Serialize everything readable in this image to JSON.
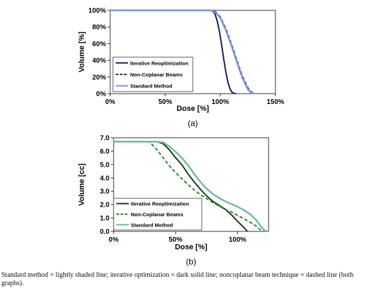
{
  "figure_caption": "Standard method = lightly shaded line; iterative optimization = dark solid line; noncoplanar beam technique = dashed line (both graphs).",
  "chart_data": [
    {
      "type": "line",
      "panel_label": "(a)",
      "xlabel": "Dose [%]",
      "ylabel": "Volume [%]",
      "xlim": [
        0,
        150
      ],
      "ylim": [
        0,
        100
      ],
      "x_ticks": [
        "0%",
        "50%",
        "100%",
        "150%"
      ],
      "y_ticks": [
        "0%",
        "20%",
        "40%",
        "60%",
        "80%",
        "100%"
      ],
      "grid": false,
      "legend_position": "bottom-left",
      "series": [
        {
          "name": "Iterative Reoptimization",
          "color": "#1a1a66",
          "style": "solid",
          "x": [
            0,
            90,
            93,
            95,
            97,
            99,
            101,
            103,
            105,
            107,
            109,
            111,
            114
          ],
          "y": [
            100,
            100,
            99,
            96,
            88,
            76,
            60,
            42,
            26,
            13,
            5,
            1,
            0
          ]
        },
        {
          "name": "Non-Coplanar Beams",
          "color": "#1f3a9e",
          "style": "dashed",
          "x": [
            0,
            90,
            95,
            100,
            105,
            110,
            115,
            120,
            125,
            128,
            131
          ],
          "y": [
            100,
            100,
            99,
            92,
            78,
            60,
            40,
            21,
            7,
            2,
            0
          ]
        },
        {
          "name": "Standard Method",
          "color": "#7a93d6",
          "style": "solid",
          "x": [
            0,
            90,
            95,
            100,
            105,
            110,
            115,
            120,
            125,
            128,
            130
          ],
          "y": [
            100,
            100,
            98,
            91,
            76,
            58,
            38,
            19,
            5,
            1,
            0
          ]
        }
      ]
    },
    {
      "type": "line",
      "panel_label": "(b)",
      "xlabel": "Dose [%]",
      "ylabel": "Volume [cc]",
      "xlim": [
        0,
        125
      ],
      "ylim": [
        0,
        7
      ],
      "x_ticks": [
        "0%",
        "50%",
        "100%"
      ],
      "x_tick_values": [
        0,
        50,
        100
      ],
      "y_ticks": [
        "0.0",
        "1.0",
        "2.0",
        "3.0",
        "4.0",
        "5.0",
        "6.0",
        "7.0"
      ],
      "grid": false,
      "legend_position": "bottom-left",
      "series": [
        {
          "name": "Iterative Reoptimization",
          "color": "#143d14",
          "style": "solid",
          "x": [
            0,
            35,
            40,
            45,
            50,
            55,
            60,
            65,
            70,
            75,
            80,
            85,
            90,
            95,
            100,
            105,
            108
          ],
          "y": [
            6.7,
            6.7,
            6.55,
            6.1,
            5.5,
            5.0,
            4.3,
            3.7,
            3.15,
            2.65,
            2.25,
            1.95,
            1.65,
            1.25,
            0.75,
            0.3,
            0.0
          ]
        },
        {
          "name": "Non-Coplanar Beams",
          "color": "#2e8b2e",
          "style": "dashed",
          "x": [
            0,
            28,
            30,
            35,
            40,
            45,
            50,
            55,
            60,
            65,
            70,
            75,
            80,
            85,
            90,
            95,
            100,
            105,
            110,
            115,
            118,
            121
          ],
          "y": [
            6.7,
            6.7,
            6.6,
            6.1,
            5.5,
            4.9,
            4.4,
            3.95,
            3.5,
            3.1,
            2.75,
            2.45,
            2.15,
            1.9,
            1.65,
            1.45,
            1.2,
            0.95,
            0.7,
            0.4,
            0.15,
            0.0
          ]
        },
        {
          "name": "Standard Method",
          "color": "#6fb89a",
          "style": "solid",
          "x": [
            0,
            35,
            40,
            45,
            50,
            55,
            60,
            65,
            70,
            75,
            80,
            85,
            90,
            95,
            100,
            105,
            110,
            115,
            120,
            123
          ],
          "y": [
            6.7,
            6.7,
            6.65,
            6.35,
            5.95,
            5.5,
            4.95,
            4.3,
            3.7,
            3.2,
            2.8,
            2.5,
            2.25,
            2.05,
            1.85,
            1.6,
            1.3,
            0.85,
            0.25,
            0.0
          ]
        }
      ]
    }
  ]
}
